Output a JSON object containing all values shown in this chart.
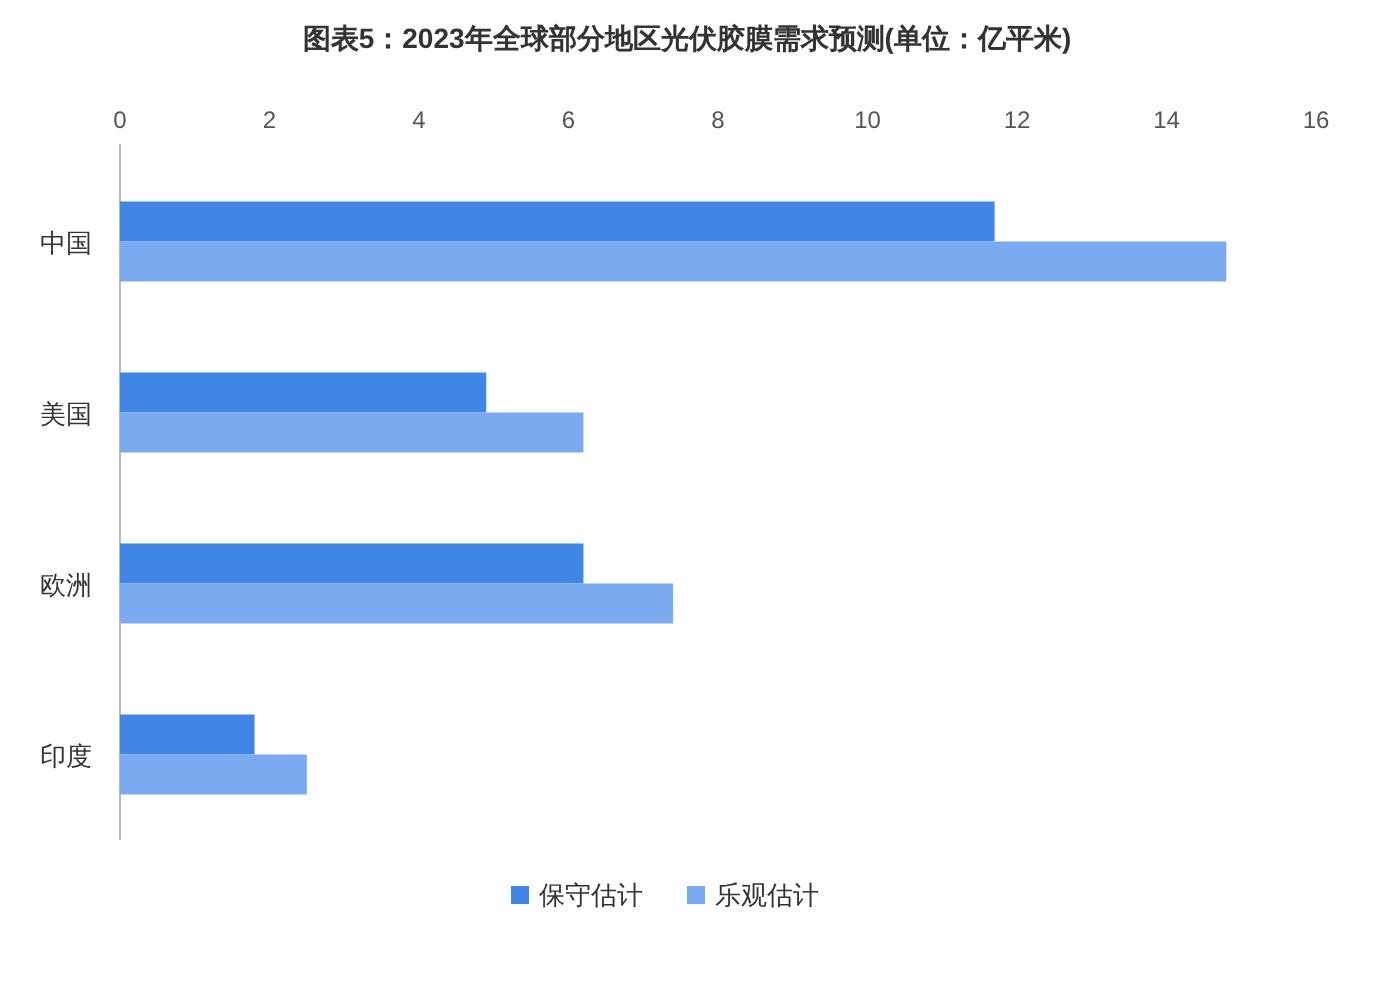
{
  "chart_data": {
    "type": "bar",
    "orientation": "horizontal",
    "title": "图表5：2023年全球部分地区光伏胶膜需求预测(单位：亿平米)",
    "categories": [
      "中国",
      "美国",
      "欧洲",
      "印度"
    ],
    "series": [
      {
        "name": "保守估计",
        "color": "#3f86e6",
        "values": [
          11.7,
          4.9,
          6.2,
          1.8
        ]
      },
      {
        "name": "乐观估计",
        "color": "#7aaaf0",
        "values": [
          14.8,
          6.2,
          7.4,
          2.5
        ]
      }
    ],
    "xlim": [
      0,
      16
    ],
    "xticks": [
      0,
      2,
      4,
      6,
      8,
      10,
      12,
      14,
      16
    ],
    "legend": "bottom"
  }
}
